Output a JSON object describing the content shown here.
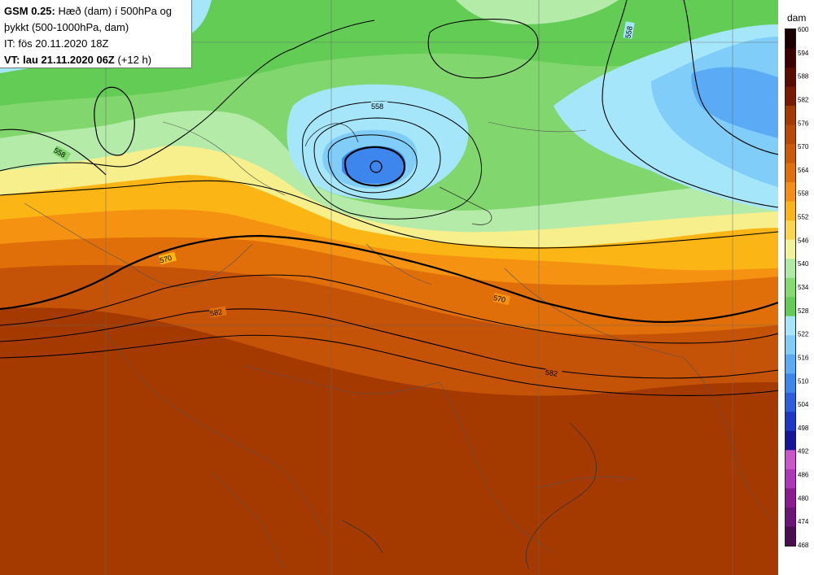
{
  "header": {
    "model": "GSM 0.25:",
    "desc_line1": " Hæð (dam) í 500hPa og",
    "desc_line2": "þykkt (500-1000hPa, dam)",
    "it_line": "IT: fös 20.11.2020 18Z",
    "vt_label": "VT: lau 21.11.2020 06Z",
    "vt_offset": " (+12 h)"
  },
  "legend": {
    "unit": "dam",
    "ticks": [
      "600",
      "594",
      "588",
      "582",
      "576",
      "570",
      "564",
      "558",
      "552",
      "546",
      "540",
      "534",
      "528",
      "522",
      "516",
      "510",
      "504",
      "498",
      "492",
      "486",
      "480",
      "474",
      "468"
    ],
    "colors": [
      "#4a0d4f",
      "#6b1578",
      "#8e1a92",
      "#b035b8",
      "#cc55cc",
      "#15159b",
      "#1f37c8",
      "#2e5ee0",
      "#3d86ee",
      "#5aaaf5",
      "#7fcdf8",
      "#a6e6fb",
      "#62cc55",
      "#85db6f",
      "#b0eba5",
      "#f0f39a",
      "#fbd54a",
      "#fbb415",
      "#f58f14",
      "#e2700a",
      "#cc5a06",
      "#b94a04",
      "#a53a00",
      "#7a1a00",
      "#5a0c00",
      "#3d0000",
      "#1c0000"
    ]
  },
  "contours": {
    "labels": [
      "558",
      "558",
      "558",
      "570",
      "570",
      "582",
      "582"
    ]
  },
  "colors": {
    "box_border": "#777777",
    "contour": "#000000",
    "borders": "#555555",
    "grid": "#666666"
  }
}
